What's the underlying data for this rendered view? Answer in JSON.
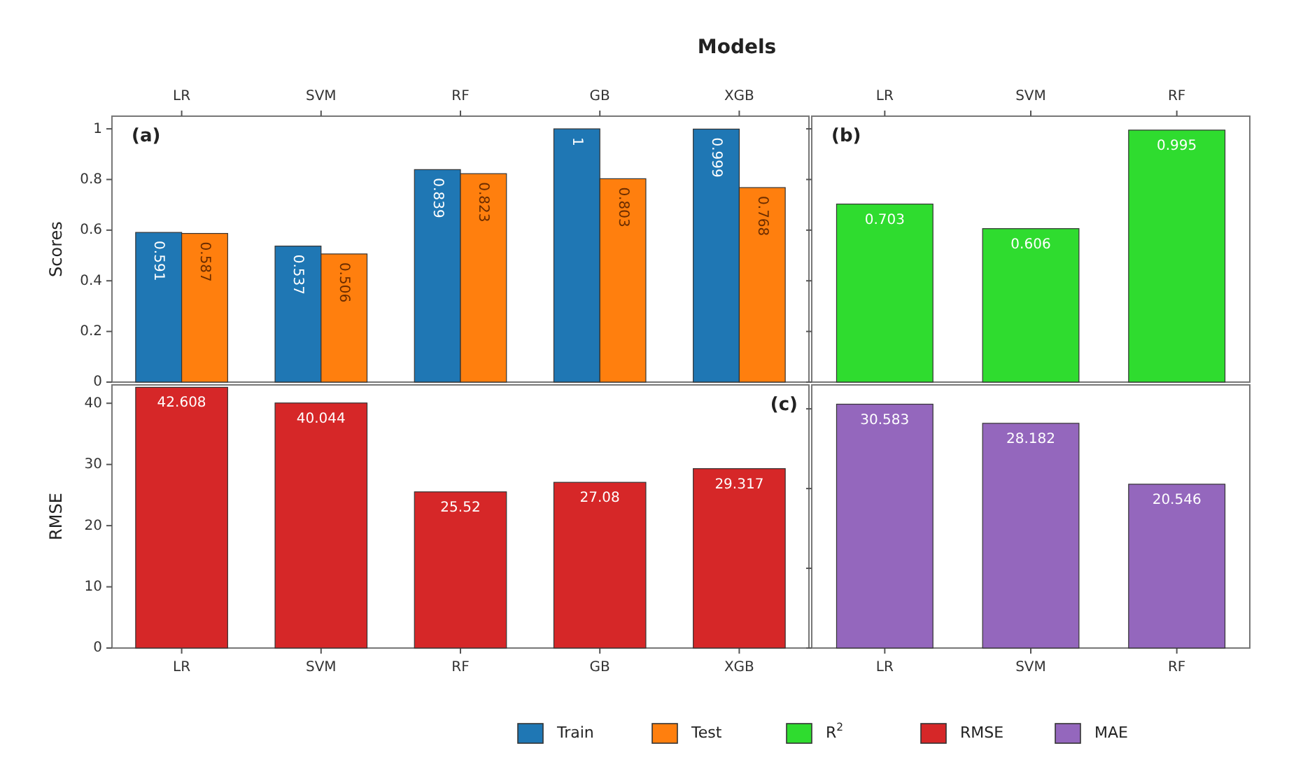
{
  "chart_data": [
    {
      "type": "bar",
      "title": "Models",
      "ylabel": "Scores",
      "categories": [
        "LR",
        "SVM",
        "RF",
        "GB",
        "XGB"
      ],
      "ylim": [
        0,
        1.05
      ],
      "yticks": [
        0,
        0.2,
        0.4,
        0.6,
        0.8,
        1
      ],
      "data_labels": true,
      "legend": "bottom",
      "annotations": [
        "(a)"
      ],
      "series": [
        {
          "name": "Train",
          "color": "#1f77b4",
          "values": [
            0.591,
            0.537,
            0.839,
            1,
            0.999
          ]
        },
        {
          "name": "Test",
          "color": "#ff7f0e",
          "values": [
            0.587,
            0.506,
            0.823,
            0.803,
            0.768
          ]
        }
      ]
    },
    {
      "type": "bar",
      "categories": [
        "LR",
        "SVM",
        "RF"
      ],
      "ylim": [
        0,
        1.05
      ],
      "yticks": [
        {
          "value": 0,
          "label": null
        },
        {
          "value": 0.2,
          "label": null
        },
        {
          "value": 0.4,
          "label": null
        },
        {
          "value": 0.6,
          "label": null
        },
        {
          "value": 0.8,
          "label": null
        },
        {
          "value": 1,
          "label": null
        }
      ],
      "tick_labels": "x",
      "data_labels": true,
      "legend": "bottom",
      "annotations": [
        "(b)"
      ],
      "series": [
        {
          "name": "R$^{2}$",
          "color": "#2fdc2f",
          "values": [
            0.703,
            0.606,
            0.995
          ]
        }
      ]
    },
    {
      "type": "bar",
      "ylabel": "RMSE",
      "categories": [
        "LR",
        "SVM",
        "RF",
        "GB",
        "XGB"
      ],
      "ylim": [
        0,
        43
      ],
      "yticks": [
        0,
        10,
        20,
        30,
        40
      ],
      "data_labels": true,
      "legend": "bottom",
      "annotations": [
        "(c)"
      ],
      "series": [
        {
          "name": "RMSE",
          "color": "#d62728",
          "values": [
            42.608,
            40.044,
            25.52,
            27.08,
            29.317
          ]
        }
      ]
    },
    {
      "type": "bar",
      "categories": [
        "LR",
        "SVM",
        "RF"
      ],
      "ylim": [
        0,
        33
      ],
      "yticks": [
        {
          "value": 0,
          "label": null
        },
        {
          "value": 10,
          "label": null
        },
        {
          "value": 20,
          "label": null
        },
        {
          "value": 30,
          "label": null
        }
      ],
      "tick_labels": "x",
      "data_labels": true,
      "legend": "bottom",
      "series": [
        {
          "name": "MAE",
          "color": "#9467bd",
          "values": [
            30.583,
            28.182,
            20.546
          ]
        }
      ]
    }
  ]
}
